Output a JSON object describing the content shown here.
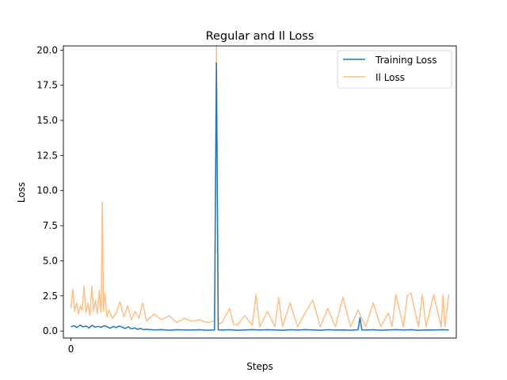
{
  "chart_data": {
    "type": "line",
    "title": "Regular and Il Loss",
    "xlabel": "Steps",
    "ylabel": "Loss",
    "xlim": [
      -2,
      102
    ],
    "ylim": [
      -0.5,
      20.3
    ],
    "xticks": [
      0
    ],
    "xtick_labels": [
      "0"
    ],
    "yticks": [
      0.0,
      2.5,
      5.0,
      7.5,
      10.0,
      12.5,
      15.0,
      17.5,
      20.0
    ],
    "ytick_labels": [
      "0.0",
      "2.5",
      "5.0",
      "7.5",
      "10.0",
      "12.5",
      "15.0",
      "17.5",
      "20.0"
    ],
    "legend_position": "top-right",
    "grid": false,
    "series": [
      {
        "name": "Training Loss",
        "color": "#1f77b4",
        "alpha": 1.0,
        "x": [
          0,
          0.8,
          1.6,
          2.4,
          3.2,
          4,
          4.8,
          5.6,
          6.4,
          7.2,
          8,
          8.8,
          9.6,
          10.4,
          11.2,
          12,
          12.8,
          13.6,
          14.4,
          15.2,
          16,
          16.8,
          17.6,
          18.4,
          19.2,
          20,
          22,
          24,
          26,
          28,
          30,
          32,
          34,
          36,
          38,
          38.5,
          39,
          40,
          42,
          44,
          46,
          48,
          50,
          52,
          54,
          56,
          58,
          60,
          62,
          64,
          66,
          68,
          70,
          72,
          74,
          76,
          76.5,
          77,
          78,
          80,
          82,
          84,
          86,
          88,
          90,
          92,
          94,
          96,
          98,
          100
        ],
        "y": [
          0.3,
          0.38,
          0.25,
          0.42,
          0.3,
          0.35,
          0.22,
          0.4,
          0.28,
          0.33,
          0.26,
          0.38,
          0.3,
          0.2,
          0.32,
          0.25,
          0.35,
          0.28,
          0.18,
          0.3,
          0.15,
          0.22,
          0.12,
          0.18,
          0.1,
          0.12,
          0.08,
          0.1,
          0.06,
          0.09,
          0.08,
          0.07,
          0.09,
          0.06,
          0.08,
          19.1,
          0.08,
          0.07,
          0.09,
          0.06,
          0.08,
          0.1,
          0.07,
          0.09,
          0.08,
          0.06,
          0.09,
          0.07,
          0.1,
          0.08,
          0.06,
          0.09,
          0.07,
          0.08,
          0.06,
          0.09,
          0.95,
          0.08,
          0.07,
          0.09,
          0.06,
          0.08,
          0.1,
          0.07,
          0.09,
          0.06,
          0.08,
          0.07,
          0.09,
          0.08
        ]
      },
      {
        "name": "Il Loss",
        "color": "#ff7f0e",
        "alpha": 0.5,
        "x": [
          0,
          0.5,
          1,
          1.5,
          2,
          2.5,
          3,
          3.5,
          4,
          4.5,
          5,
          5.5,
          6,
          6.5,
          7,
          7.5,
          8,
          8.3,
          8.6,
          9,
          9.5,
          10,
          11,
          12,
          13,
          14,
          15,
          16,
          17,
          18,
          19,
          20,
          22,
          24,
          26,
          28,
          30,
          32,
          34,
          36,
          38,
          38.5,
          39,
          40,
          42,
          43,
          44,
          46,
          48,
          49,
          50,
          52,
          54,
          55,
          56,
          58,
          60,
          62,
          64,
          66,
          68,
          70,
          72,
          74,
          76,
          78,
          80,
          82,
          84,
          85,
          86,
          88,
          89,
          90,
          92,
          93,
          94,
          96,
          98,
          98.5,
          99,
          100
        ],
        "y": [
          1.6,
          3.0,
          1.4,
          2.0,
          1.2,
          1.8,
          1.5,
          3.2,
          1.3,
          2.0,
          1.1,
          3.2,
          1.4,
          2.2,
          1.2,
          2.9,
          1.3,
          9.2,
          1.4,
          2.7,
          1.0,
          1.5,
          0.9,
          1.3,
          2.1,
          1.0,
          1.8,
          0.8,
          1.4,
          0.9,
          2.0,
          0.7,
          1.2,
          0.8,
          1.1,
          0.6,
          0.9,
          0.7,
          0.8,
          0.6,
          0.7,
          20.3,
          0.5,
          0.6,
          1.6,
          0.5,
          0.4,
          1.1,
          0.4,
          2.6,
          0.3,
          1.4,
          0.3,
          2.4,
          0.3,
          2.0,
          0.3,
          1.3,
          2.2,
          0.3,
          1.6,
          0.3,
          2.4,
          0.3,
          1.5,
          0.3,
          2.0,
          0.3,
          1.3,
          0.3,
          2.6,
          0.3,
          2.5,
          2.7,
          0.3,
          2.6,
          0.3,
          2.6,
          0.3,
          2.6,
          0.3,
          2.6
        ]
      }
    ]
  }
}
